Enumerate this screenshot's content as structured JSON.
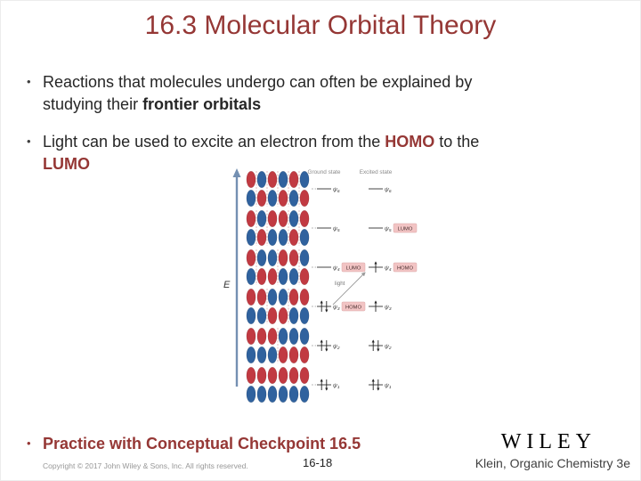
{
  "slide": {
    "title": "16.3 Molecular Orbital Theory",
    "bullet_char": "•",
    "bullets": [
      {
        "lines": [
          [
            {
              "t": "Reactions that molecules undergo can often be explained by"
            }
          ],
          [
            {
              "t": "studying their "
            },
            {
              "t": "frontier orbitals",
              "b": true
            }
          ]
        ]
      },
      {
        "lines": [
          [
            {
              "t": "Light can be used to excite an electron from the "
            },
            {
              "t": "HOMO",
              "b": true,
              "accent": true
            },
            {
              "t": " to the "
            }
          ],
          [
            {
              "t": "LUMO",
              "b": true,
              "accent": true
            }
          ]
        ]
      }
    ],
    "practice_text": "Practice with Conceptual Checkpoint 16.5",
    "footer": {
      "copyright": "Copyright © 2017 John Wiley & Sons, Inc. All rights reserved.",
      "page_number": "16-18",
      "brand": "WILEY",
      "book": "Klein, Organic Chemistry 3e"
    },
    "colors": {
      "accent": "#953735",
      "text": "#262626",
      "lobe_red": "#C13A42",
      "lobe_blue": "#30629E",
      "highlight": "#F2C4C4",
      "axis": "#7490B2"
    }
  },
  "figure": {
    "energy_axis_label": "E",
    "ground_header": "Ground state",
    "excited_header": "Excited state",
    "light_label": "light",
    "levels": [
      {
        "name": "ψ6",
        "phases": "+-+-+-",
        "ground_electrons": 0,
        "ground_tag": "",
        "excited_electrons": 0,
        "excited_tag": ""
      },
      {
        "name": "ψ5",
        "phases": "+-++-+",
        "ground_electrons": 0,
        "ground_tag": "",
        "excited_electrons": 0,
        "excited_tag": "LUMO"
      },
      {
        "name": "ψ4",
        "phases": "+--++-",
        "ground_electrons": 0,
        "ground_tag": "LUMO",
        "excited_electrons": 1,
        "excited_tag": "HOMO"
      },
      {
        "name": "ψ3",
        "phases": "++--++",
        "ground_electrons": 2,
        "ground_tag": "HOMO",
        "excited_electrons": 1,
        "excited_tag": ""
      },
      {
        "name": "ψ2",
        "phases": "+++---",
        "ground_electrons": 2,
        "ground_tag": "",
        "excited_electrons": 2,
        "excited_tag": ""
      },
      {
        "name": "ψ1",
        "phases": "++++++",
        "ground_electrons": 2,
        "ground_tag": "",
        "excited_electrons": 2,
        "excited_tag": ""
      }
    ]
  }
}
